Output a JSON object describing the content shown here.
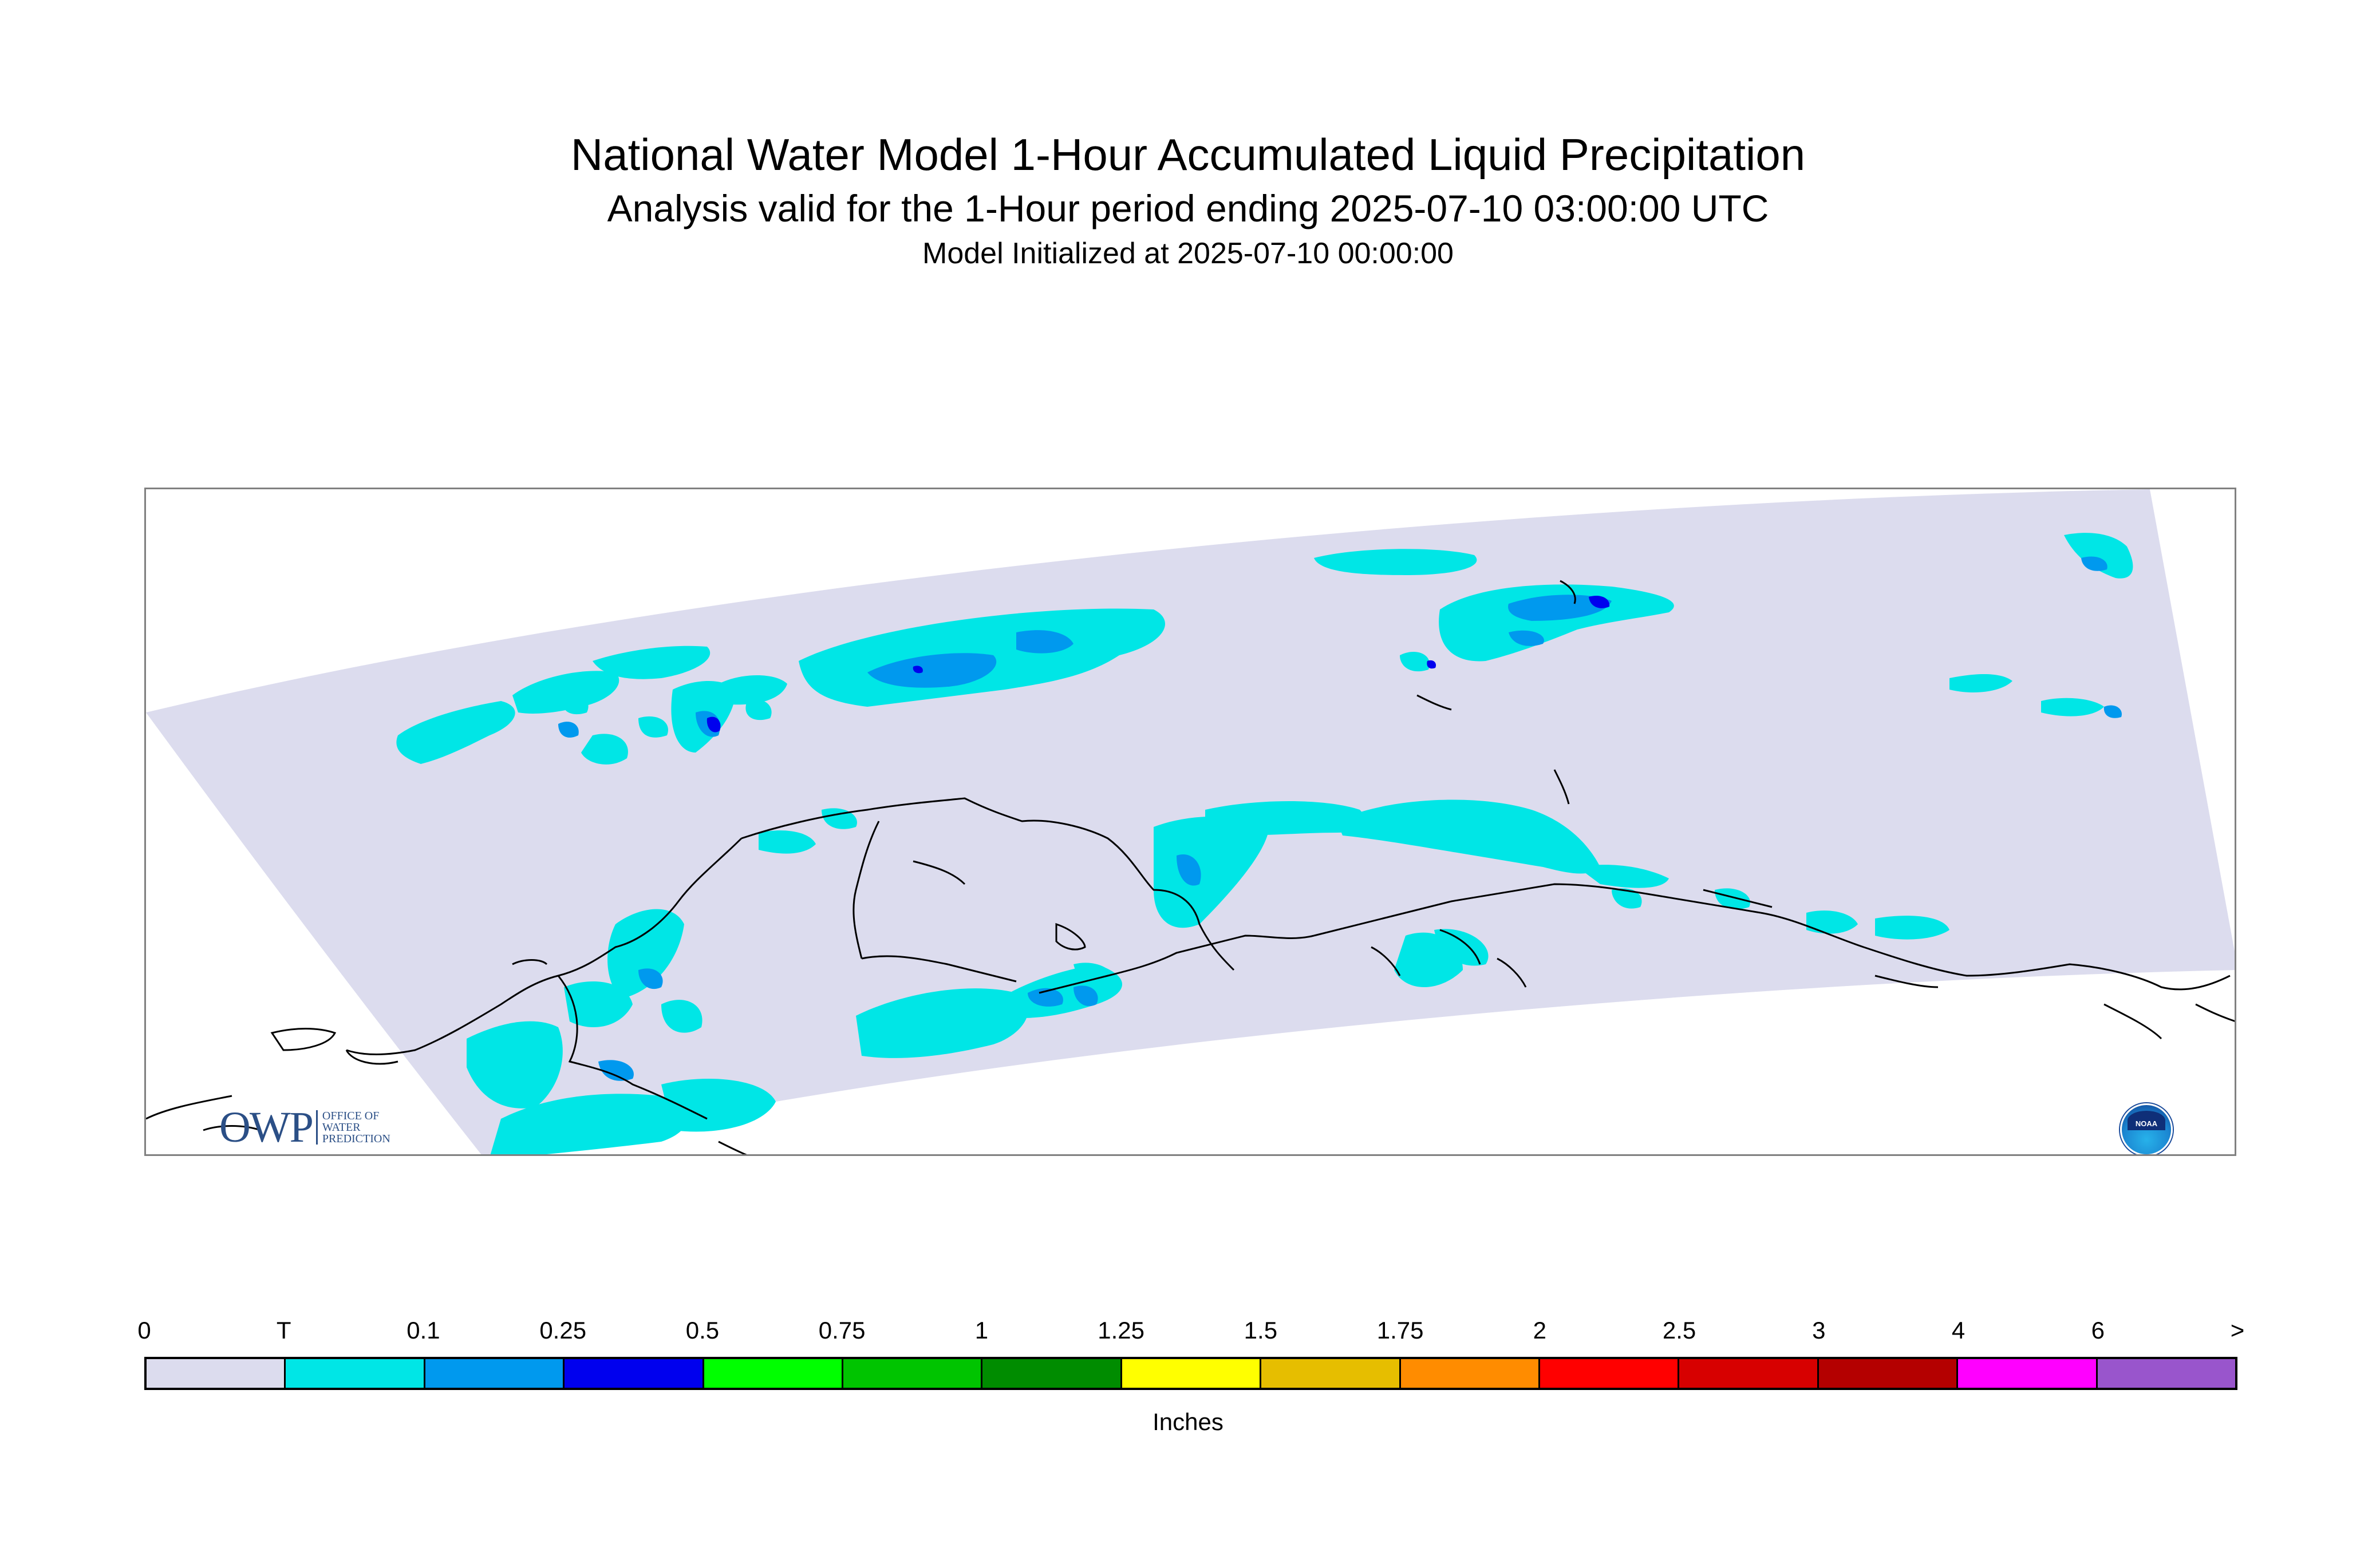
{
  "title": "National Water Model 1-Hour Accumulated Liquid Precipitation",
  "subtitle": "Analysis valid for the 1-Hour period ending 2025-07-10 03:00:00 UTC",
  "initialized": "Model Initialized at 2025-07-10 00:00:00",
  "legend": {
    "ticks": [
      "0",
      "T",
      "0.1",
      "0.25",
      "0.5",
      "0.75",
      "1",
      "1.25",
      "1.5",
      "1.75",
      "2",
      "2.5",
      "3",
      "4",
      "6",
      ">"
    ],
    "colors": [
      "#dcdcee",
      "#00e6e6",
      "#0099ee",
      "#0000ee",
      "#00ff00",
      "#00c400",
      "#008c00",
      "#ffff00",
      "#e6be00",
      "#ff8c00",
      "#ff0000",
      "#d70000",
      "#b40000",
      "#ff00ff",
      "#9955cc"
    ],
    "unit": "Inches"
  },
  "logos": {
    "owp_letters": "OWP",
    "owp_text": "Office of Water Prediction",
    "noaa_text": "NOAA"
  },
  "map": {
    "domain_color": "#dcdcee",
    "trace_color": "#00e6e6",
    "light_color": "#0099ee",
    "heavy_color": "#0000ee",
    "coastline_color": "#000000"
  }
}
